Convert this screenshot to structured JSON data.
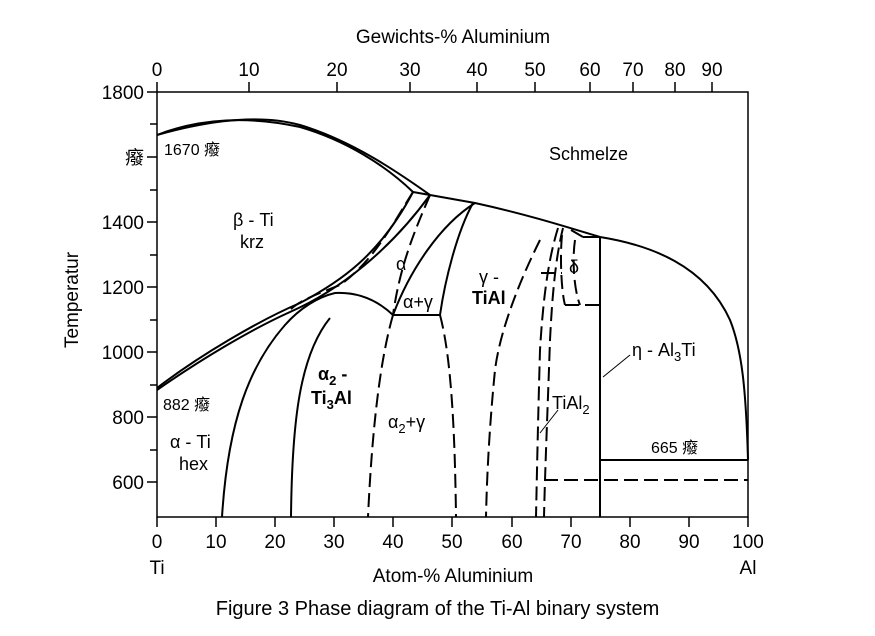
{
  "top_axis": {
    "title": "Gewichts-% Aluminium",
    "ticks": [
      "0",
      "10",
      "20",
      "30",
      "40",
      "50",
      "60",
      "70",
      "80",
      "90"
    ]
  },
  "bottom_axis": {
    "title": "Atom-% Aluminium",
    "ticks": [
      "0",
      "10",
      "20",
      "30",
      "40",
      "50",
      "60",
      "70",
      "80",
      "90",
      "100"
    ],
    "left_element": "Ti",
    "right_element": "Al"
  },
  "left_axis": {
    "title": "Temperatur",
    "ticks": [
      "1800",
      "1400",
      "1200",
      "1000",
      "800",
      "600"
    ],
    "glyph_tick": "癈"
  },
  "labels": {
    "melt_temp": "1670 癈",
    "liquid": "Schmelze",
    "beta_ti": "β - Ti",
    "beta_ti_sub": "krz",
    "alpha": "α",
    "alpha_gamma": "α+γ",
    "gamma_top": "γ -",
    "gamma_phase": "TiAl",
    "delta": "δ",
    "eta_prefix": "η - Al",
    "eta_sub": "3",
    "eta_suffix": "Ti",
    "transition_temp": "882 癈",
    "alpha2_top": "α",
    "alpha2_sub": "2",
    "alpha2_dash": " -",
    "ti3al_prefix": "Ti",
    "ti3al_sub": "3",
    "ti3al_suffix": "Al",
    "alpha2_gamma_prefix": "α",
    "alpha2_gamma_sub": "2",
    "alpha2_gamma_suffix": "+γ",
    "tial2_prefix": "TiAl",
    "tial2_sub": "2",
    "alpha_ti": "α - Ti",
    "alpha_ti_sub": "hex",
    "eutectic_temp": "665 癈"
  },
  "caption": "Figure 3 Phase diagram of the Ti-Al binary system"
}
